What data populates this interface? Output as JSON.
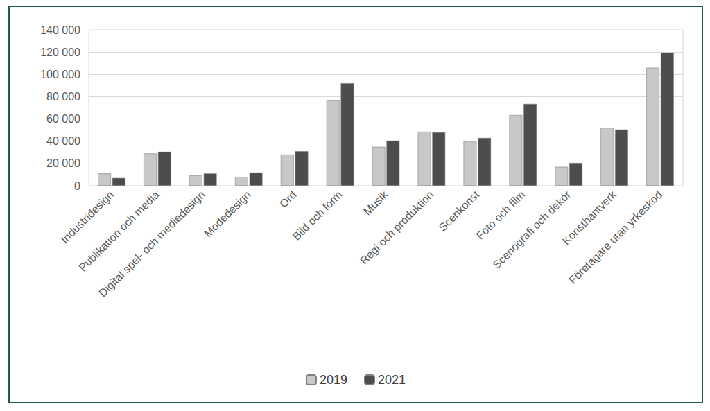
{
  "chart_data": {
    "type": "bar",
    "categories": [
      "Industridesign",
      "Publikation och media",
      "Digital spel- och mediedesign",
      "Modedesign",
      "Ord",
      "Bild och form",
      "Musik",
      "Regi och produktion",
      "Scenkonst",
      "Foto och film",
      "Scenografi och dekor",
      "Konsthantverk",
      "Företagare utan yrkeskod"
    ],
    "series": [
      {
        "name": "2019",
        "color": "#c8c8c8",
        "values": [
          11000,
          29000,
          9300,
          8000,
          28000,
          76500,
          35000,
          48500,
          40000,
          63500,
          17000,
          52000,
          106000
        ]
      },
      {
        "name": "2021",
        "color": "#4d4d4d",
        "values": [
          7000,
          30500,
          11000,
          11800,
          31000,
          92000,
          40500,
          48000,
          43000,
          73500,
          20500,
          50500,
          119500
        ]
      }
    ],
    "ylim": [
      0,
      140000
    ],
    "yticks": [
      0,
      {
        "value": 20000,
        "label": "20 000"
      },
      {
        "value": 40000,
        "label": "40 000"
      },
      {
        "value": 60000,
        "label": "60 000"
      },
      {
        "value": 80000,
        "label": "80 000"
      },
      {
        "value": 100000,
        "label": "100 000"
      },
      {
        "value": 120000,
        "label": "120 000"
      },
      {
        "value": 140000,
        "label": "140 000"
      }
    ],
    "grid": true,
    "legend": "bottom"
  }
}
